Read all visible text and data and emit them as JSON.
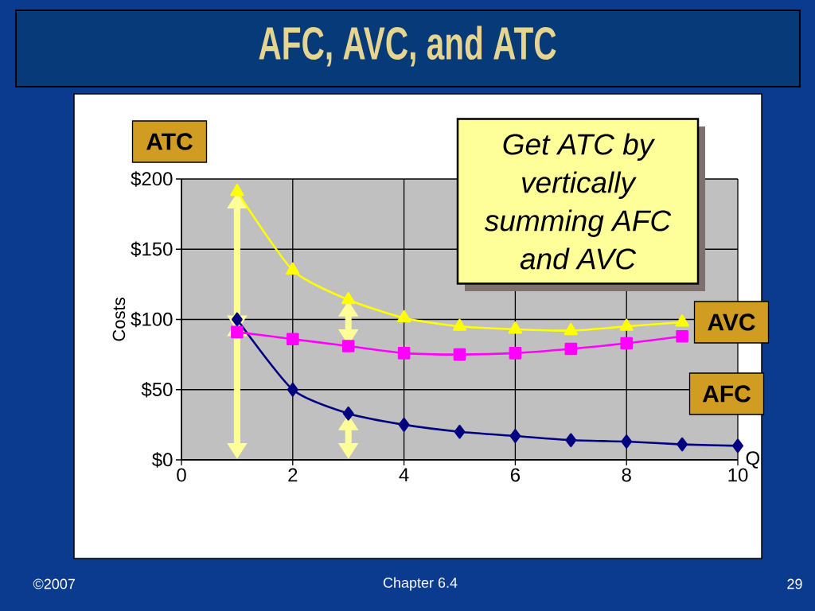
{
  "chart_data": {
    "type": "line",
    "title": "AFC, AVC, and ATC",
    "xlabel": "Q",
    "ylabel": "Costs",
    "x": [
      1,
      2,
      3,
      4,
      5,
      6,
      7,
      8,
      9,
      10
    ],
    "series": [
      {
        "name": "AFC",
        "color": "#000080",
        "marker": "diamond",
        "values": [
          100,
          50,
          33,
          25,
          20,
          17,
          14,
          13,
          11,
          10
        ]
      },
      {
        "name": "AVC",
        "color": "#ff00ff",
        "marker": "square",
        "values": [
          91,
          86,
          81,
          76,
          75,
          76,
          79,
          83,
          88,
          null
        ]
      },
      {
        "name": "ATC",
        "color": "#ffff00",
        "marker": "triangle",
        "values": [
          191,
          135,
          114,
          101,
          95,
          93,
          92,
          95,
          98,
          null
        ]
      }
    ],
    "xlim": [
      0,
      10
    ],
    "ylim": [
      0,
      200
    ],
    "xticks": [
      0,
      2,
      4,
      6,
      8,
      10
    ],
    "yticks": [
      {
        "value": 0,
        "label": "$0"
      },
      {
        "value": 50,
        "label": "$50"
      },
      {
        "value": 100,
        "label": "$100"
      },
      {
        "value": 150,
        "label": "$150"
      },
      {
        "value": 200,
        "label": "$200"
      }
    ],
    "grid": true,
    "line_style": "solid",
    "annotations": [
      "Get ATC by vertically summing AFC and AVC",
      "©2007",
      "Chapter 6.4",
      "29"
    ]
  }
}
